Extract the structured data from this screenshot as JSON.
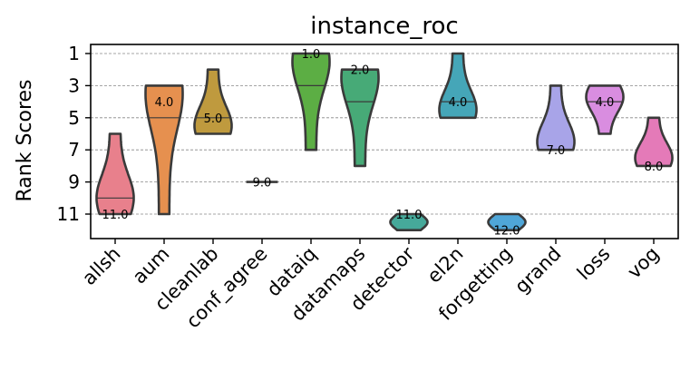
{
  "chart_data": {
    "type": "violin",
    "title": "instance_roc",
    "xlabel": "",
    "ylabel": "Rank Scores",
    "ylim": [
      12.5,
      0.5
    ],
    "y_inverted": true,
    "yticks": [
      "1",
      "3",
      "5",
      "7",
      "9",
      "11"
    ],
    "grid": "horizontal-dashed",
    "violins": [
      {
        "name": "allsh",
        "color": "#e8808c",
        "min": 6,
        "max": 11,
        "median": 10,
        "label": "11.0",
        "label_at": 11,
        "bulge_at": 10,
        "max_half_width": 0.38
      },
      {
        "name": "aum",
        "color": "#e6904f",
        "min": 3,
        "max": 11,
        "median": 5,
        "label": "4.0",
        "label_at": 4,
        "bulge_at": 3.5,
        "max_half_width": 0.38
      },
      {
        "name": "cleanlab",
        "color": "#bf9a3e",
        "min": 2,
        "max": 6,
        "median": 5,
        "label": "5.0",
        "label_at": 5,
        "bulge_at": 5.5,
        "max_half_width": 0.38
      },
      {
        "name": "conf_agree",
        "color": "#a6a84a",
        "min": 9,
        "max": 9,
        "median": 9,
        "label": "9.0",
        "label_at": 9,
        "bulge_at": 9,
        "max_half_width": 0.38
      },
      {
        "name": "dataiq",
        "color": "#5cae44",
        "min": 1,
        "max": 7,
        "median": 3,
        "label": "1.0",
        "label_at": 1,
        "bulge_at": 1.5,
        "max_half_width": 0.38
      },
      {
        "name": "datamaps",
        "color": "#47aa77",
        "min": 2,
        "max": 8,
        "median": 4,
        "label": "2.0",
        "label_at": 2,
        "bulge_at": 2.5,
        "max_half_width": 0.38
      },
      {
        "name": "detector",
        "color": "#46a99a",
        "min": 11,
        "max": 12,
        "median": 11,
        "label": "11.0",
        "label_at": 11,
        "bulge_at": 11.5,
        "max_half_width": 0.38
      },
      {
        "name": "el2n",
        "color": "#45a6b8",
        "min": 1,
        "max": 5,
        "median": 4,
        "label": "4.0",
        "label_at": 4,
        "bulge_at": 4.5,
        "max_half_width": 0.38
      },
      {
        "name": "forgetting",
        "color": "#4fa6d8",
        "min": 11,
        "max": 12,
        "median": 12,
        "label": "12.0",
        "label_at": 12,
        "bulge_at": 11.5,
        "max_half_width": 0.38
      },
      {
        "name": "grand",
        "color": "#a8a4e8",
        "min": 3,
        "max": 7,
        "median": 7,
        "label": "7.0",
        "label_at": 7,
        "bulge_at": 6.5,
        "max_half_width": 0.38
      },
      {
        "name": "loss",
        "color": "#d98de0",
        "min": 3,
        "max": 6,
        "median": 4,
        "label": "4.0",
        "label_at": 4,
        "bulge_at": 3.7,
        "max_half_width": 0.38
      },
      {
        "name": "vog",
        "color": "#e47ab8",
        "min": 5,
        "max": 8,
        "median": 8,
        "label": "8.0",
        "label_at": 8,
        "bulge_at": 7.5,
        "max_half_width": 0.38
      }
    ]
  }
}
